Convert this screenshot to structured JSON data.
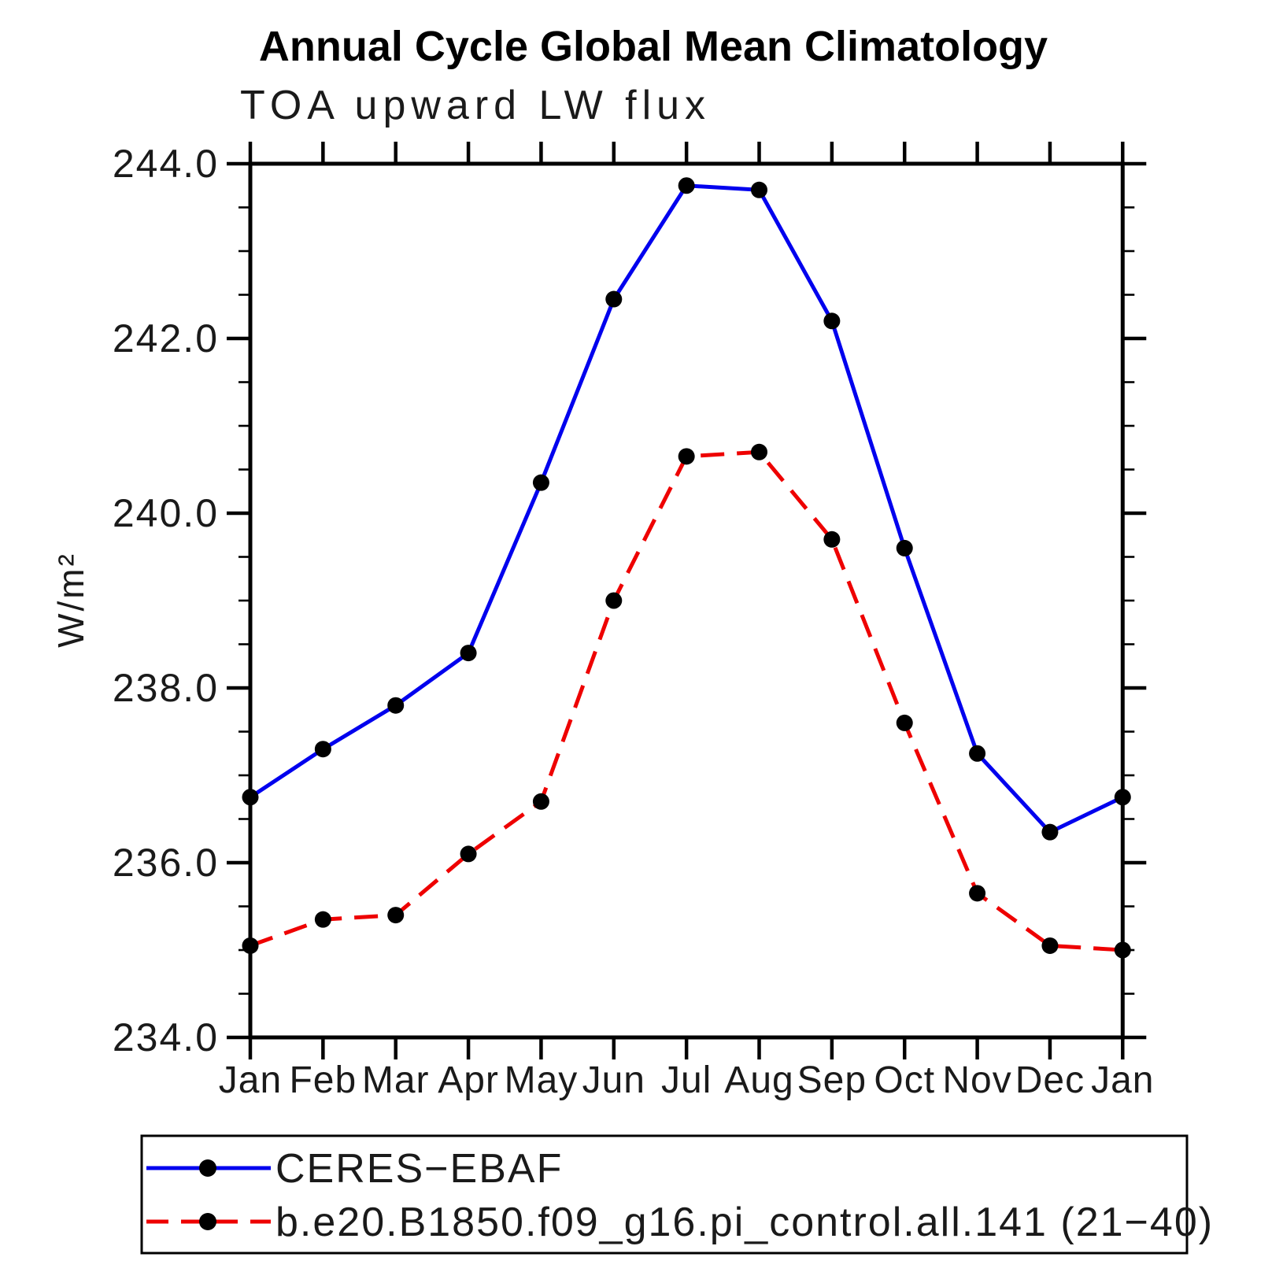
{
  "chart_data": {
    "type": "line",
    "title": "Annual Cycle Global Mean Climatology",
    "subtitle": "TOA upward LW flux",
    "xlabel": "",
    "ylabel": "W/m²",
    "categories": [
      "Jan",
      "Feb",
      "Mar",
      "Apr",
      "May",
      "Jun",
      "Jul",
      "Aug",
      "Sep",
      "Oct",
      "Nov",
      "Dec",
      "Jan"
    ],
    "ylim": [
      234.0,
      244.0
    ],
    "ytick_major_interval": 2.0,
    "ytick_minor_interval": 0.5,
    "ytick_labels": [
      "234.0",
      "236.0",
      "238.0",
      "240.0",
      "242.0",
      "244.0"
    ],
    "grid": false,
    "frame_color": "#000000",
    "legend_position": "bottom-left-box",
    "series": [
      {
        "name": "CERES−EBAF",
        "color": "#0000ee",
        "line_style": "solid",
        "marker": "circle",
        "marker_color": "#000000",
        "values": [
          236.75,
          237.3,
          237.8,
          238.4,
          240.35,
          242.45,
          243.75,
          243.7,
          242.2,
          239.6,
          237.25,
          236.35,
          236.75
        ]
      },
      {
        "name": "b.e20.B1850.f09_g16.pi_control.all.141 (21−40)",
        "color": "#ee0000",
        "line_style": "dashed",
        "marker": "circle",
        "marker_color": "#000000",
        "values": [
          235.05,
          235.35,
          235.4,
          236.1,
          236.7,
          239.0,
          240.65,
          240.7,
          239.7,
          237.6,
          235.65,
          235.05,
          235.0
        ]
      }
    ]
  }
}
